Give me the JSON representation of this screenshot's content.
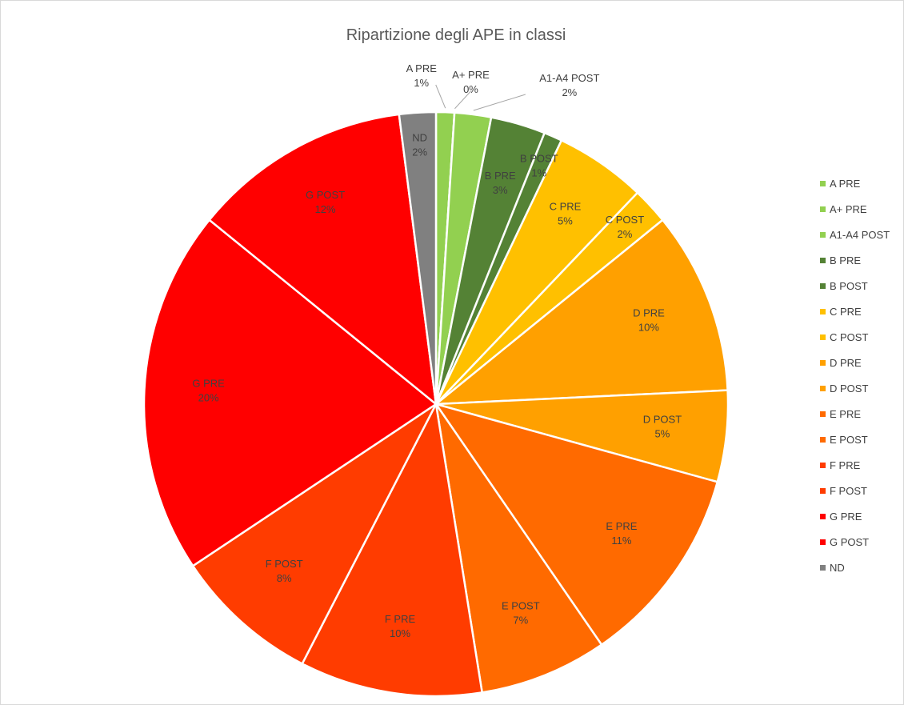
{
  "chart_data": {
    "type": "pie",
    "title": "Ripartizione degli APE in classi",
    "categories": [
      "A PRE",
      "A+ PRE",
      "A1-A4 POST",
      "B PRE",
      "B POST",
      "C PRE",
      "C POST",
      "D PRE",
      "D POST",
      "E PRE",
      "E POST",
      "F PRE",
      "F POST",
      "G PRE",
      "G POST",
      "ND"
    ],
    "values": [
      1,
      0,
      2,
      3,
      1,
      5,
      2,
      10,
      5,
      11,
      7,
      10,
      8,
      20,
      12,
      2
    ],
    "value_labels": [
      "1%",
      "0%",
      "2%",
      "3%",
      "1%",
      "5%",
      "2%",
      "10%",
      "5%",
      "11%",
      "7%",
      "10%",
      "8%",
      "20%",
      "12%",
      "2%"
    ],
    "colors": [
      "#92d050",
      "#92d050",
      "#92d050",
      "#548235",
      "#548235",
      "#ffc000",
      "#ffc000",
      "#ffa000",
      "#ffa000",
      "#ff6a00",
      "#ff6a00",
      "#ff3c00",
      "#ff3c00",
      "#ff0000",
      "#ff0000",
      "#808080"
    ],
    "legend": "right"
  }
}
